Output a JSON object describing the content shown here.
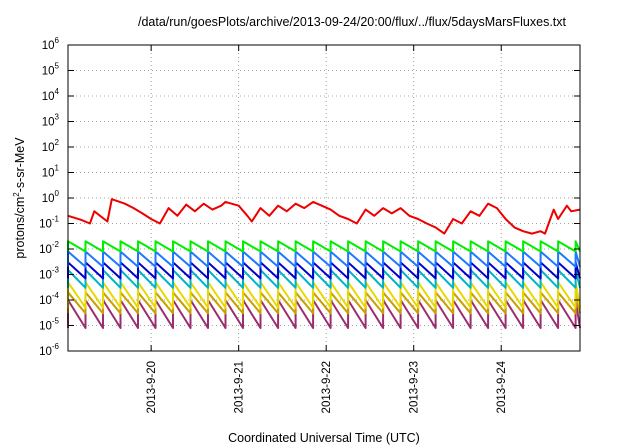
{
  "chart_data": {
    "type": "line",
    "title": "/data/run/goesPlots/archive/2013-09-24/20:00/flux/../flux/5daysMarsFluxes.txt",
    "xlabel": "Coordinated Universal Time (UTC)",
    "ylabel": {
      "pre": "protons/cm",
      "sup": "2",
      "post": "-s-sr-MeV"
    },
    "x_axis": {
      "unit": "day of September 2013",
      "range": [
        19.05,
        24.9
      ],
      "ticks": [
        {
          "value": 20,
          "label": "2013-9-20"
        },
        {
          "value": 21,
          "label": "2013-9-21"
        },
        {
          "value": 22,
          "label": "2013-9-22"
        },
        {
          "value": 23,
          "label": "2013-9-23"
        },
        {
          "value": 24,
          "label": "2013-9-24"
        }
      ]
    },
    "y_axis": {
      "scale": "log",
      "range": [
        1e-06,
        1000000.0
      ],
      "ticks": [
        {
          "value": 1e-06,
          "base": "10",
          "exp": "-6"
        },
        {
          "value": 1e-05,
          "base": "10",
          "exp": "-5"
        },
        {
          "value": 0.0001,
          "base": "10",
          "exp": "-4"
        },
        {
          "value": 0.001,
          "base": "10",
          "exp": "-3"
        },
        {
          "value": 0.01,
          "base": "10",
          "exp": "-2"
        },
        {
          "value": 0.1,
          "base": "10",
          "exp": "-1"
        },
        {
          "value": 1,
          "base": "10",
          "exp": "0"
        },
        {
          "value": 10,
          "base": "10",
          "exp": "1"
        },
        {
          "value": 100,
          "base": "10",
          "exp": "2"
        },
        {
          "value": 1000,
          "base": "10",
          "exp": "3"
        },
        {
          "value": 10000,
          "base": "10",
          "exp": "4"
        },
        {
          "value": 100000,
          "base": "10",
          "exp": "5"
        },
        {
          "value": 1000000,
          "base": "10",
          "exp": "6"
        }
      ]
    },
    "grid": true,
    "legend": "none",
    "series": [
      {
        "color": "#ee0000",
        "x": [
          19.05,
          19.2,
          19.3,
          19.35,
          19.5,
          19.55,
          19.7,
          19.8,
          19.9,
          20.0,
          20.1,
          20.2,
          20.3,
          20.4,
          20.5,
          20.6,
          20.7,
          20.8,
          20.85,
          21.0,
          21.1,
          21.15,
          21.25,
          21.35,
          21.45,
          21.55,
          21.65,
          21.75,
          21.85,
          21.95,
          22.05,
          22.15,
          22.25,
          22.35,
          22.45,
          22.55,
          22.65,
          22.75,
          22.85,
          22.95,
          23.05,
          23.15,
          23.25,
          23.35,
          23.45,
          23.55,
          23.65,
          23.75,
          23.85,
          23.95,
          24.05,
          24.15,
          24.25,
          24.35,
          24.45,
          24.5,
          24.6,
          24.65,
          24.75,
          24.8,
          24.9
        ],
        "y": [
          0.2,
          0.14,
          0.1,
          0.3,
          0.12,
          0.9,
          0.6,
          0.4,
          0.25,
          0.15,
          0.1,
          0.4,
          0.2,
          0.55,
          0.3,
          0.6,
          0.35,
          0.5,
          0.7,
          0.5,
          0.2,
          0.12,
          0.4,
          0.2,
          0.5,
          0.3,
          0.6,
          0.4,
          0.7,
          0.5,
          0.35,
          0.2,
          0.15,
          0.1,
          0.35,
          0.2,
          0.4,
          0.25,
          0.4,
          0.2,
          0.15,
          0.1,
          0.07,
          0.04,
          0.15,
          0.1,
          0.3,
          0.2,
          0.6,
          0.4,
          0.15,
          0.07,
          0.05,
          0.04,
          0.05,
          0.04,
          0.35,
          0.15,
          0.5,
          0.3,
          0.35
        ]
      },
      {
        "color": "#00ee00",
        "x": [
          19.05,
          24.9
        ],
        "period": 0.2,
        "peak": 0.02,
        "trough": 0.008
      },
      {
        "color": "#1e78ff",
        "x": [
          19.05,
          24.9
        ],
        "period": 0.2,
        "peak": 0.008,
        "trough": 0.002
      },
      {
        "color": "#0000cc",
        "x": [
          19.05,
          24.9
        ],
        "period": 0.2,
        "peak": 0.003,
        "trough": 0.0007
      },
      {
        "color": "#00b4c8",
        "x": [
          19.05,
          24.9
        ],
        "period": 0.2,
        "peak": 0.0015,
        "trough": 0.0003
      },
      {
        "color": "#e8d800",
        "x": [
          19.05,
          24.9
        ],
        "period": 0.2,
        "peak": 0.0005,
        "trough": 5e-05
      },
      {
        "color": "#c8a000",
        "x": [
          19.05,
          24.9
        ],
        "period": 0.2,
        "peak": 0.0002,
        "trough": 3e-05
      },
      {
        "color": "#9b2c6e",
        "x": [
          19.05,
          24.9
        ],
        "period": 0.2,
        "peak": 0.0001,
        "trough": 8e-06
      }
    ]
  }
}
